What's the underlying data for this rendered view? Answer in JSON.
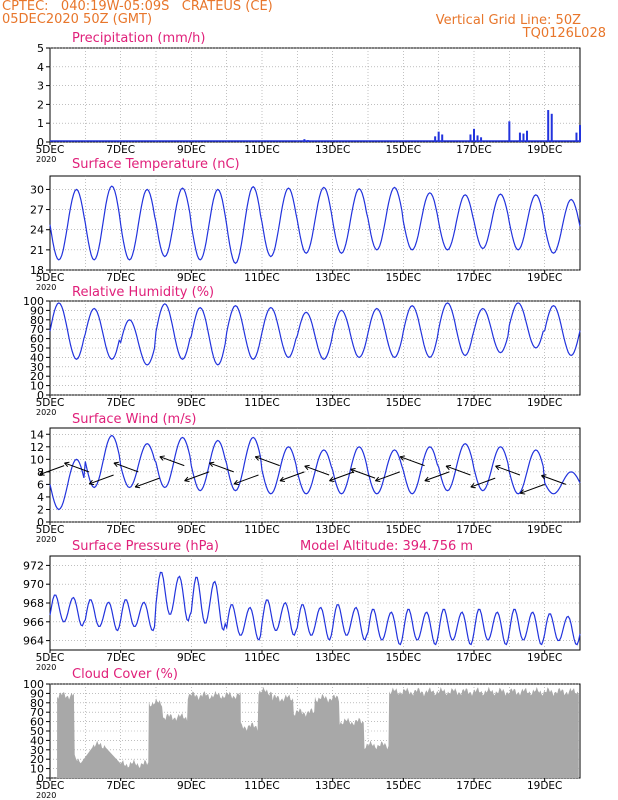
{
  "header": {
    "line1": "CPTEC:   040:19W-05:09S   CRATEUS (CE)",
    "line2": "05DEC2020 50Z (GMT)",
    "right1": "Vertical Grid Line: 50Z",
    "right2": "TQ0126L028"
  },
  "colors": {
    "header": "#e8762b",
    "title": "#e0207a",
    "line": "#2233dd",
    "cloud": "#a8a8a8",
    "arrow": "#000000"
  },
  "x_axis": {
    "tick_labels": [
      "5DEC",
      "7DEC",
      "9DEC",
      "11DEC",
      "13DEC",
      "15DEC",
      "17DEC",
      "19DEC"
    ],
    "tick_days": [
      5,
      7,
      9,
      11,
      13,
      15,
      17,
      19
    ],
    "range_days": [
      5,
      20
    ],
    "year_label": "2020"
  },
  "chart_data": [
    {
      "type": "bar",
      "title": "Precipitation (mm/h)",
      "ylim": [
        0,
        5
      ],
      "yticks": [
        0,
        1,
        2,
        3,
        4,
        5
      ],
      "series": [
        {
          "x": [
            12.2,
            12.3,
            15.9,
            16.0,
            16.1,
            16.9,
            17.0,
            17.1,
            17.2,
            18.0,
            18.3,
            18.4,
            18.5,
            19.1,
            19.2,
            19.9,
            20.0
          ],
          "values": [
            0.15,
            0.1,
            0.3,
            0.55,
            0.4,
            0.4,
            0.7,
            0.35,
            0.25,
            1.1,
            0.5,
            0.45,
            0.6,
            1.7,
            1.5,
            0.5,
            0.9
          ]
        }
      ]
    },
    {
      "type": "line",
      "title": "Surface Temperature (nC)",
      "ylim": [
        18,
        32
      ],
      "yticks": [
        18,
        21,
        24,
        27,
        30
      ],
      "series": [
        {
          "kind": "diurnal",
          "max": [
            30,
            30.5,
            30,
            30.2,
            30,
            30.4,
            30.2,
            30.3,
            30.1,
            30.3,
            29.5,
            29.2,
            29.3,
            29.2,
            28.5
          ],
          "min": [
            19.5,
            19.5,
            19.5,
            20,
            19.5,
            19,
            20,
            20.5,
            20.5,
            21,
            21,
            21,
            21.2,
            21,
            20.5
          ]
        }
      ]
    },
    {
      "type": "line",
      "title": "Relative Humidity (%)",
      "ylim": [
        0,
        100
      ],
      "yticks": [
        0,
        10,
        20,
        30,
        40,
        50,
        60,
        70,
        80,
        90,
        100
      ],
      "series": [
        {
          "kind": "diurnal",
          "inverted": true,
          "max": [
            98,
            92,
            80,
            97,
            93,
            95,
            93,
            88,
            90,
            92,
            95,
            98,
            92,
            98,
            95
          ],
          "min": [
            38,
            38,
            32,
            38,
            32,
            38,
            40,
            38,
            40,
            40,
            40,
            42,
            45,
            50,
            42
          ]
        }
      ]
    },
    {
      "type": "line",
      "title": "Surface Wind (m/s)",
      "ylim": [
        0,
        15
      ],
      "yticks": [
        0,
        2,
        4,
        6,
        8,
        10,
        12,
        14
      ],
      "series": [
        {
          "kind": "diurnal",
          "max": [
            10,
            13.8,
            12.5,
            13.5,
            13,
            13.5,
            12,
            11.5,
            12,
            11.5,
            12,
            12.5,
            12,
            11.5,
            8
          ],
          "min": [
            2,
            5.5,
            5.5,
            5.5,
            5,
            5,
            4.5,
            4.5,
            4.5,
            4.5,
            4.5,
            5,
            5,
            4.5,
            4.5
          ]
        }
      ],
      "vectors": {
        "x": [
          5.4,
          6.1,
          6.8,
          7.5,
          8.1,
          8.8,
          9.5,
          10.2,
          10.9,
          11.5,
          12.2,
          12.9,
          13.6,
          14.2,
          14.9,
          15.6,
          16.3,
          16.9,
          17.6,
          18.3,
          19.0,
          19.6
        ],
        "speed": [
          9,
          8,
          7.5,
          8,
          7,
          9,
          8,
          8,
          7.5,
          9,
          8,
          7.5,
          8,
          7,
          8,
          9,
          8,
          7.5,
          7,
          7.5,
          6,
          6
        ]
      }
    },
    {
      "type": "line",
      "title": "Surface Pressure (hPa)",
      "annotation": "Model Altitude: 394.756 m",
      "ylim": [
        963,
        973
      ],
      "yticks": [
        964,
        966,
        968,
        970,
        972
      ],
      "series": [
        {
          "kind": "semidiurnal",
          "max": [
            969,
            968.5,
            968.5,
            971.5,
            971,
            968,
            968.5,
            968,
            968,
            967.5,
            967.5,
            967.5,
            967.5,
            967.5,
            967
          ],
          "min": [
            965.5,
            965,
            965,
            966,
            965,
            964,
            964.5,
            964,
            964,
            963.5,
            963.5,
            963.5,
            963.5,
            963.5,
            963.5
          ]
        }
      ]
    },
    {
      "type": "bar",
      "title": "Cloud Cover (%)",
      "ylim": [
        0,
        100
      ],
      "yticks": [
        0,
        10,
        20,
        30,
        40,
        50,
        60,
        70,
        80,
        90,
        100
      ],
      "segments": [
        {
          "range": [
            5.2,
            5.7
          ],
          "level": 88
        },
        {
          "range": [
            5.7,
            5.9
          ],
          "level": 20
        },
        {
          "range": [
            6.2,
            6.6
          ],
          "level": 35
        },
        {
          "range": [
            7.0,
            7.8
          ],
          "level": 15
        },
        {
          "range": [
            7.8,
            8.2
          ],
          "level": 80
        },
        {
          "range": [
            8.2,
            8.9
          ],
          "level": 65
        },
        {
          "range": [
            8.9,
            10.4
          ],
          "level": 88
        },
        {
          "range": [
            10.4,
            10.9
          ],
          "level": 55
        },
        {
          "range": [
            10.9,
            11.3
          ],
          "level": 92
        },
        {
          "range": [
            11.3,
            11.9
          ],
          "level": 85
        },
        {
          "range": [
            11.9,
            12.5
          ],
          "level": 70
        },
        {
          "range": [
            12.5,
            13.2
          ],
          "level": 85
        },
        {
          "range": [
            13.2,
            13.9
          ],
          "level": 60
        },
        {
          "range": [
            13.9,
            14.6
          ],
          "level": 35
        },
        {
          "range": [
            14.6,
            20.0
          ],
          "level": 92
        }
      ]
    }
  ]
}
